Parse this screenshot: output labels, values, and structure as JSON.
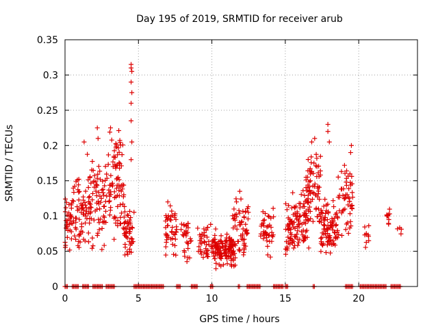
{
  "chart_data": {
    "type": "scatter",
    "title": "Day 195 of 2019, SRMTID for receiver arub",
    "xlabel": "GPS time / hours",
    "ylabel": "SRMTID / TECUs",
    "xlim": [
      0,
      24
    ],
    "ylim": [
      0,
      0.35
    ],
    "xticks": [
      0,
      5,
      10,
      15,
      20
    ],
    "yticks": [
      0,
      0.05,
      0.1,
      0.15,
      0.2,
      0.25,
      0.3,
      0.35
    ],
    "grid": true,
    "marker": "+",
    "series": [
      {
        "name": "SRMTID",
        "color": "#dd0000",
        "clusters": [
          {
            "x_range": [
              0.0,
              0.5
            ],
            "y_range": [
              0.05,
              0.14
            ],
            "count": 35
          },
          {
            "x_range": [
              0.5,
              1.5
            ],
            "y_range": [
              0.05,
              0.16
            ],
            "count": 60
          },
          {
            "x_range": [
              1.5,
              3.0
            ],
            "y_range": [
              0.05,
              0.2
            ],
            "count": 90
          },
          {
            "x_range": [
              3.0,
              4.0
            ],
            "y_range": [
              0.06,
              0.23
            ],
            "count": 80
          },
          {
            "x_range": [
              4.0,
              4.7
            ],
            "y_range": [
              0.03,
              0.13
            ],
            "count": 50
          },
          {
            "x_range": [
              6.8,
              7.6
            ],
            "y_range": [
              0.04,
              0.12
            ],
            "count": 45
          },
          {
            "x_range": [
              7.9,
              8.6
            ],
            "y_range": [
              0.03,
              0.11
            ],
            "count": 30
          },
          {
            "x_range": [
              9.0,
              10.4
            ],
            "y_range": [
              0.03,
              0.1
            ],
            "count": 60
          },
          {
            "x_range": [
              10.2,
              11.6
            ],
            "y_range": [
              0.02,
              0.08
            ],
            "count": 110
          },
          {
            "x_range": [
              11.4,
              12.5
            ],
            "y_range": [
              0.04,
              0.13
            ],
            "count": 60
          },
          {
            "x_range": [
              13.3,
              14.2
            ],
            "y_range": [
              0.03,
              0.12
            ],
            "count": 40
          },
          {
            "x_range": [
              15.0,
              15.6
            ],
            "y_range": [
              0.03,
              0.14
            ],
            "count": 45
          },
          {
            "x_range": [
              15.6,
              16.6
            ],
            "y_range": [
              0.05,
              0.14
            ],
            "count": 70
          },
          {
            "x_range": [
              16.4,
              17.4
            ],
            "y_range": [
              0.08,
              0.2
            ],
            "count": 70
          },
          {
            "x_range": [
              17.4,
              18.6
            ],
            "y_range": [
              0.04,
              0.13
            ],
            "count": 90
          },
          {
            "x_range": [
              18.6,
              19.6
            ],
            "y_range": [
              0.06,
              0.19
            ],
            "count": 55
          },
          {
            "x_range": [
              20.4,
              20.7
            ],
            "y_range": [
              0.05,
              0.1
            ],
            "count": 10
          },
          {
            "x_range": [
              21.9,
              22.2
            ],
            "y_range": [
              0.06,
              0.12
            ],
            "count": 10
          },
          {
            "x_range": [
              22.6,
              22.9
            ],
            "y_range": [
              0.07,
              0.09
            ],
            "count": 4
          }
        ],
        "outliers": [
          {
            "x": 4.5,
            "y": 0.315
          },
          {
            "x": 4.5,
            "y": 0.31
          },
          {
            "x": 4.55,
            "y": 0.305
          },
          {
            "x": 4.5,
            "y": 0.29
          },
          {
            "x": 4.55,
            "y": 0.275
          },
          {
            "x": 4.5,
            "y": 0.26
          },
          {
            "x": 4.5,
            "y": 0.235
          },
          {
            "x": 4.55,
            "y": 0.205
          },
          {
            "x": 4.5,
            "y": 0.18
          },
          {
            "x": 2.2,
            "y": 0.225
          },
          {
            "x": 2.25,
            "y": 0.21
          },
          {
            "x": 1.3,
            "y": 0.205
          },
          {
            "x": 3.1,
            "y": 0.225
          },
          {
            "x": 17.9,
            "y": 0.23
          },
          {
            "x": 17.9,
            "y": 0.22
          },
          {
            "x": 18.0,
            "y": 0.205
          },
          {
            "x": 17.0,
            "y": 0.21
          },
          {
            "x": 16.8,
            "y": 0.205
          },
          {
            "x": 19.5,
            "y": 0.2
          },
          {
            "x": 19.45,
            "y": 0.19
          },
          {
            "x": 7.0,
            "y": 0.12
          },
          {
            "x": 11.9,
            "y": 0.135
          }
        ],
        "zero_runs": [
          [
            0.0,
            0.2
          ],
          [
            0.5,
            0.9
          ],
          [
            1.2,
            1.6
          ],
          [
            1.9,
            2.6
          ],
          [
            2.8,
            3.4
          ],
          [
            4.7,
            6.7
          ],
          [
            7.6,
            7.9
          ],
          [
            8.6,
            9.0
          ],
          [
            9.9,
            10.1
          ],
          [
            11.8,
            11.9
          ],
          [
            12.4,
            13.3
          ],
          [
            14.2,
            14.9
          ],
          [
            15.0,
            15.2
          ],
          [
            16.9,
            17.0
          ],
          [
            19.1,
            19.6
          ],
          [
            20.1,
            21.9
          ],
          [
            22.2,
            22.9
          ]
        ]
      }
    ]
  }
}
